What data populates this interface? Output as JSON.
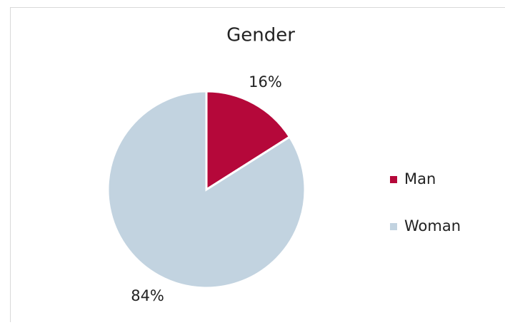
{
  "chart_data": {
    "type": "pie",
    "title": "Gender",
    "categories": [
      "Man",
      "Woman"
    ],
    "values": [
      16,
      84
    ],
    "value_labels": [
      "16%",
      "84%"
    ],
    "colors": [
      "#b5083a",
      "#c2d3e0"
    ],
    "legend": "right"
  }
}
